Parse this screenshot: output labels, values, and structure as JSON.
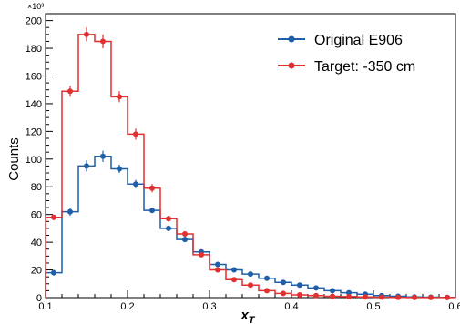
{
  "chart_data": {
    "type": "histogram",
    "title": "",
    "xlabel": "x",
    "xlabel_subscript": "T",
    "ylabel": "Counts",
    "y_multiplier_label": "×10³",
    "xlim": [
      0.1,
      0.6
    ],
    "ylim": [
      0,
      205
    ],
    "x_ticks": [
      "0.1",
      "0.2",
      "0.3",
      "0.4",
      "0.5",
      "0.6"
    ],
    "y_ticks": [
      "0",
      "20",
      "40",
      "60",
      "80",
      "100",
      "120",
      "140",
      "160",
      "180",
      "200"
    ],
    "grid": false,
    "legend_position": "top-right",
    "bin_edges": [
      0.1,
      0.12,
      0.14,
      0.16,
      0.18,
      0.2,
      0.22,
      0.24,
      0.26,
      0.28,
      0.3,
      0.32,
      0.34,
      0.36,
      0.38,
      0.4,
      0.42,
      0.44,
      0.46,
      0.48,
      0.5,
      0.52,
      0.54,
      0.56,
      0.58,
      0.6
    ],
    "series": [
      {
        "name": "Original E906",
        "color": "#1f5fa8",
        "values": [
          18,
          62,
          95,
          102,
          93,
          82,
          63,
          50,
          42,
          33,
          24,
          20,
          17,
          14,
          11,
          9,
          7,
          5,
          3.5,
          2.5,
          1.5,
          1,
          0.5,
          0.3,
          0.2
        ],
        "errors": [
          2,
          3,
          4,
          4,
          3,
          3,
          2,
          2,
          2,
          1,
          1,
          1,
          1,
          1,
          0.8,
          0.7,
          0.6,
          0.5,
          0.4,
          0.3,
          0.3,
          0.2,
          0.2,
          0.1,
          0.1
        ]
      },
      {
        "name": "Target: -350 cm",
        "color": "#e03030",
        "values": [
          58,
          149,
          190,
          185,
          145,
          118,
          79,
          57,
          46,
          31,
          20,
          13,
          9,
          5,
          3,
          2,
          1.5,
          1,
          0.7,
          0.5,
          0.3,
          0.2,
          0.1,
          0.1,
          0.1
        ],
        "errors": [
          2,
          4,
          5,
          5,
          4,
          4,
          3,
          2,
          2,
          1,
          1,
          1,
          0.8,
          0.6,
          0.4,
          0.3,
          0.3,
          0.2,
          0.2,
          0.1,
          0.1,
          0.1,
          0.1,
          0.1,
          0.1
        ]
      }
    ]
  }
}
